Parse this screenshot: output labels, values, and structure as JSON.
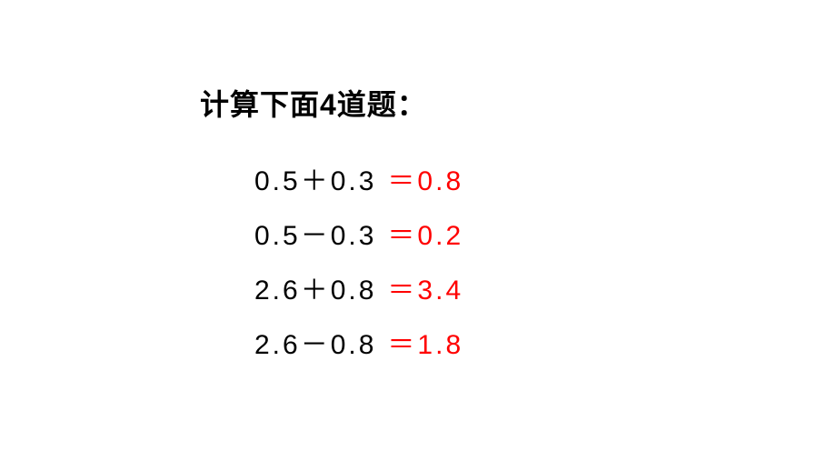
{
  "title": "计算下面4道题：",
  "title_color": "#000000",
  "title_fontsize": 32,
  "title_fontweight": "bold",
  "answer_color": "#ff0000",
  "expression_color": "#000000",
  "problem_fontsize": 30,
  "background_color": "#ffffff",
  "problems": [
    {
      "expression": "0.5＋0.3",
      "answer": "＝0.8"
    },
    {
      "expression": "0.5－0.3",
      "answer": "＝0.2"
    },
    {
      "expression": "2.6＋0.8",
      "answer": "＝3.4"
    },
    {
      "expression": "2.6－0.8",
      "answer": "＝1.8"
    }
  ]
}
